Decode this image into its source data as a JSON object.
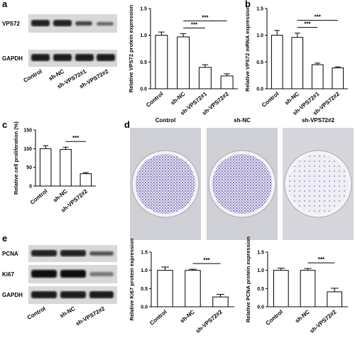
{
  "panels": [
    "a",
    "b",
    "c",
    "d",
    "e"
  ],
  "blots": {
    "a": {
      "rows": [
        "VPS72",
        "GAPDH"
      ],
      "lanes": [
        "Control",
        "sh-NC",
        "sh-VPS72#1",
        "sh-VPS72#2"
      ]
    },
    "e": {
      "rows": [
        "PCNA",
        "Ki67",
        "GAPDH"
      ],
      "lanes": [
        "Control",
        "sh-NC",
        "sh-VPS72#2"
      ]
    }
  },
  "dishes": {
    "labels": [
      "Control",
      "sh-NC",
      "sh-VPS72#2"
    ]
  },
  "chart_data": [
    {
      "type": "bar",
      "y_label": "Relative VPS72 protein expression",
      "categories": [
        "Control",
        "sh-NC",
        "sh-VPS72#1",
        "sh-VPS72#2"
      ],
      "values": [
        1.0,
        0.97,
        0.4,
        0.24
      ],
      "errors": [
        0.06,
        0.06,
        0.05,
        0.04
      ],
      "ylim": [
        0,
        1.5
      ],
      "yticks": [
        {
          "value": 0,
          "label": "0.0"
        },
        {
          "value": 0.5,
          "label": "0.5"
        },
        {
          "value": 1,
          "label": "1.0"
        },
        {
          "value": 1.5,
          "label": "1.5"
        }
      ],
      "annotations": [
        {
          "text": "***",
          "between": [
            "sh-NC",
            "sh-VPS72#1"
          ]
        },
        {
          "text": "***",
          "between": [
            "sh-NC",
            "sh-VPS72#2"
          ]
        }
      ]
    },
    {
      "type": "bar",
      "y_label": "Relative VPS72 mRNA expression",
      "categories": [
        "Control",
        "sh-NC",
        "sh-VPS72#1",
        "sh-VPS72#2"
      ],
      "values": [
        1.0,
        0.96,
        0.45,
        0.39
      ],
      "errors": [
        0.09,
        0.08,
        0.03,
        0.02
      ],
      "ylim": [
        0,
        1.5
      ],
      "yticks": [
        {
          "value": 0,
          "label": "0.0"
        },
        {
          "value": 0.5,
          "label": "0.5"
        },
        {
          "value": 1,
          "label": "1.0"
        },
        {
          "value": 1.5,
          "label": "1.5"
        }
      ],
      "annotations": [
        {
          "text": "***",
          "between": [
            "sh-NC",
            "sh-VPS72#1"
          ]
        },
        {
          "text": "***",
          "between": [
            "sh-NC",
            "sh-VPS72#2"
          ]
        }
      ]
    },
    {
      "type": "bar",
      "y_label": "Relative cell proliferation (%)",
      "categories": [
        "Control",
        "sh-NC",
        "sh-VPS72#2"
      ],
      "values": [
        100,
        98,
        33
      ],
      "errors": [
        8,
        6,
        3
      ],
      "ylim": [
        0,
        150
      ],
      "yticks": [
        0,
        50,
        100,
        150
      ],
      "annotations": [
        {
          "text": "***",
          "between": [
            "sh-NC",
            "sh-VPS72#2"
          ]
        }
      ]
    },
    {
      "type": "bar",
      "y_label": "Relative Ki67 protein expression",
      "categories": [
        "Control",
        "sh-NC",
        "sh-VPS72#2"
      ],
      "values": [
        1.0,
        1.0,
        0.27
      ],
      "errors": [
        0.09,
        0.03,
        0.07
      ],
      "ylim": [
        0,
        1.5
      ],
      "yticks": [
        {
          "value": 0,
          "label": "0.0"
        },
        {
          "value": 0.5,
          "label": "0.5"
        },
        {
          "value": 1,
          "label": "1.0"
        },
        {
          "value": 1.5,
          "label": "1.5"
        }
      ],
      "annotations": [
        {
          "text": "***",
          "between": [
            "sh-NC",
            "sh-VPS72#2"
          ]
        }
      ]
    },
    {
      "type": "bar",
      "y_label": "Relative PCNA protein expression",
      "categories": [
        "Control",
        "sh-NC",
        "sh-VPS72#2"
      ],
      "values": [
        1.0,
        1.0,
        0.41
      ],
      "errors": [
        0.06,
        0.05,
        0.1
      ],
      "ylim": [
        0,
        1.5
      ],
      "yticks": [
        {
          "value": 0,
          "label": "0.0"
        },
        {
          "value": 0.5,
          "label": "0.5"
        },
        {
          "value": 1,
          "label": "1.0"
        },
        {
          "value": 1.5,
          "label": "1.5"
        }
      ],
      "annotations": [
        {
          "text": "***",
          "between": [
            "sh-NC",
            "sh-VPS72#2"
          ]
        }
      ]
    }
  ]
}
